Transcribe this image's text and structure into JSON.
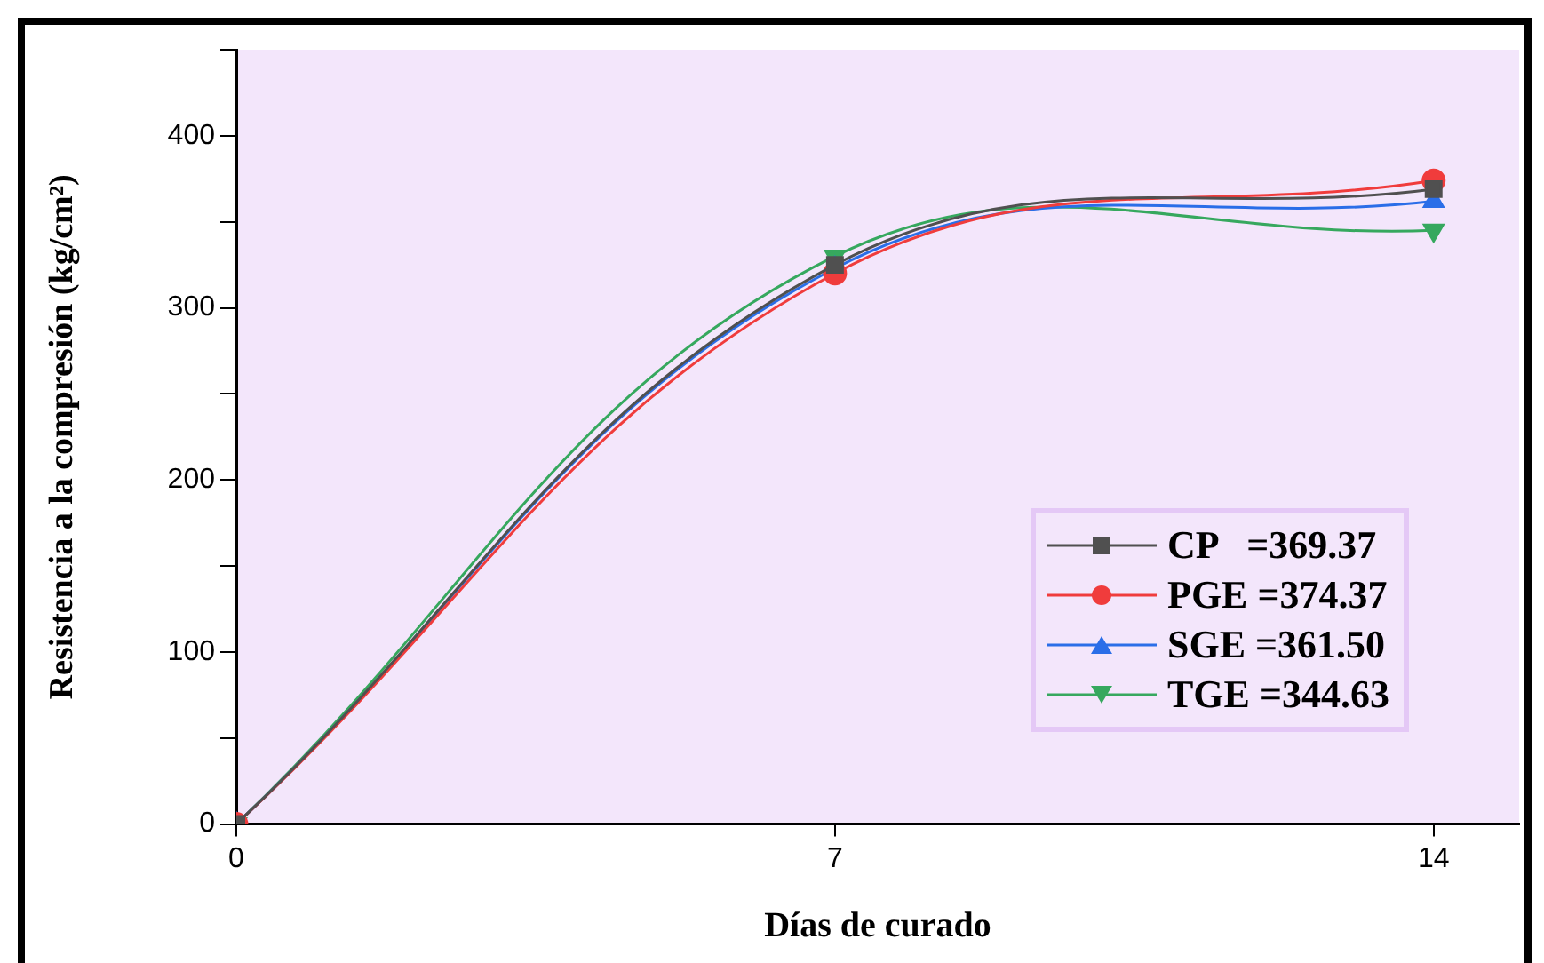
{
  "chart_data": {
    "type": "line",
    "xlabel": "Días de curado",
    "ylabel": "Resistencia a la compresión (kg/cm²)",
    "x": [
      0,
      7,
      14
    ],
    "xlim": [
      0,
      15
    ],
    "xticks": [
      0,
      7,
      14
    ],
    "ylim": [
      0,
      450
    ],
    "yticks": [
      0,
      {
        "value": 50,
        "label": null
      },
      100,
      {
        "value": 150,
        "label": null
      },
      200,
      {
        "value": 250,
        "label": null
      },
      300,
      {
        "value": 350,
        "label": null
      },
      400,
      {
        "value": 450,
        "label": null
      }
    ],
    "grid": false,
    "legend": "bottom right",
    "series": [
      {
        "name": "CP   =369.37",
        "color": "#505050",
        "marker": "square",
        "values": [
          0,
          325,
          369
        ]
      },
      {
        "name": "PGE =374.37",
        "color": "#f03c3c",
        "marker": "circle",
        "values": [
          0,
          320,
          374
        ]
      },
      {
        "name": "SGE =361.50",
        "color": "#2a6ee8",
        "marker": "triangle",
        "values": [
          0,
          323,
          362
        ]
      },
      {
        "name": "TGE =344.63",
        "color": "#36a85e",
        "marker": "triangle-down",
        "values": [
          0,
          330,
          345
        ]
      }
    ]
  }
}
